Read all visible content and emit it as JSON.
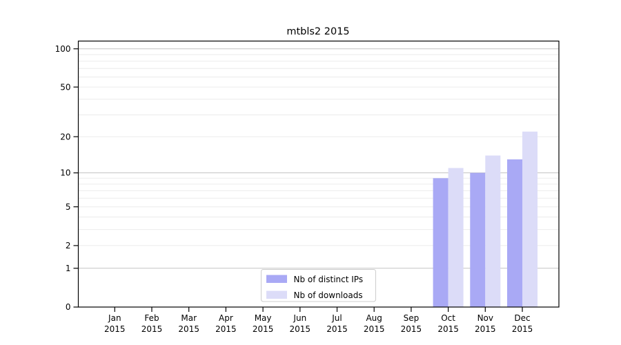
{
  "chart_data": {
    "type": "bar",
    "title": "mtbls2 2015",
    "x_categories": [
      "Jan",
      "Feb",
      "Mar",
      "Apr",
      "May",
      "Jun",
      "Jul",
      "Aug",
      "Sep",
      "Oct",
      "Nov",
      "Dec"
    ],
    "x_year": "2015",
    "y_scale": "log1p",
    "ylim": [
      0,
      115
    ],
    "y_ticks": [
      0,
      1,
      2,
      5,
      10,
      20,
      50,
      100
    ],
    "y_major_gridlines": [
      1,
      10,
      100
    ],
    "y_minor_gridlines": [
      2,
      3,
      4,
      5,
      6,
      7,
      8,
      9,
      20,
      30,
      40,
      50,
      60,
      70,
      80,
      90
    ],
    "grid": "on",
    "series": [
      {
        "name": "Nb of distinct IPs",
        "color": "#a9a9f5",
        "values": [
          0,
          0,
          0,
          0,
          0,
          0,
          0,
          0,
          0,
          9,
          10,
          13
        ]
      },
      {
        "name": "Nb of downloads",
        "color": "#dcdcf8",
        "values": [
          0,
          0,
          0,
          0,
          0,
          0,
          0,
          0,
          0,
          11,
          14,
          22
        ]
      }
    ],
    "legend_position": "lower center",
    "colors": {
      "axis": "#000000",
      "major_grid": "#c3c3c3",
      "minor_grid": "#ebebeb",
      "legend_border": "#cccccc",
      "background": "#ffffff"
    }
  }
}
